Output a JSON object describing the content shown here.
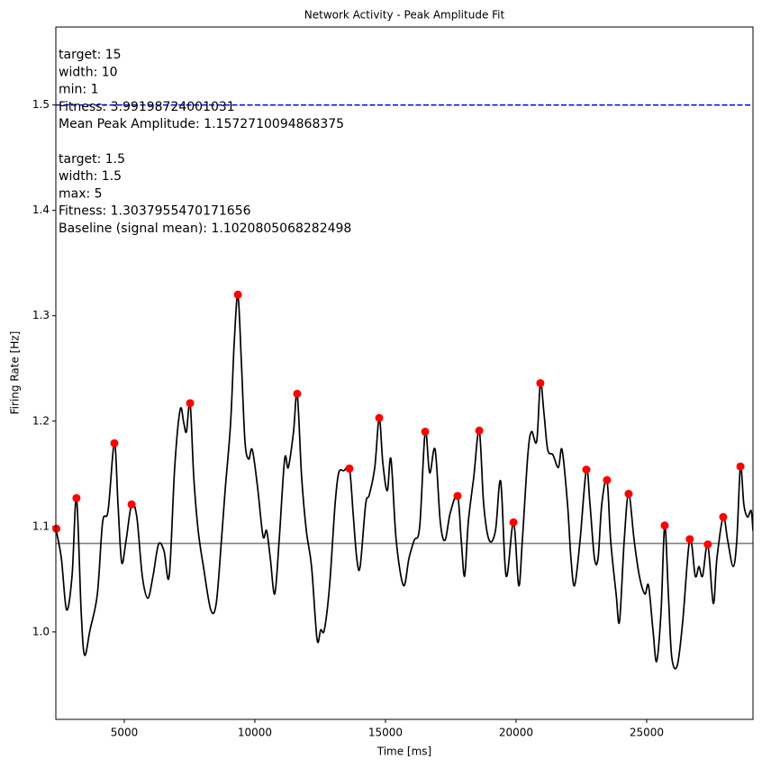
{
  "chart_data": {
    "type": "line",
    "title": "Network Activity - Peak Amplitude Fit",
    "x_label": "Time [ms]",
    "y_label": "Firing Rate [Hz]",
    "xlim": [
      2380,
      29070
    ],
    "ylim": [
      0.917,
      1.574
    ],
    "xticks": [
      5000,
      10000,
      15000,
      20000,
      25000
    ],
    "yticks": [
      {
        "value": 1,
        "label": "1.0"
      },
      1.1,
      1.2,
      1.3,
      1.4,
      1.5
    ],
    "annotations": [
      [
        "target: 15",
        "width: 10",
        "min: 1",
        "Fitness: 3.99198724001031",
        "Mean Peak Amplitude: 1.1572710094868375"
      ],
      [
        "target: 1.5",
        "width: 1.5",
        "max: 5",
        "Fitness: 1.3037955470171656",
        "Baseline (signal mean): 1.1020805068282498"
      ]
    ],
    "hlines": [
      {
        "value": 1.5,
        "color": "#0000ff",
        "style": "dashed"
      },
      {
        "value": 1.084,
        "color": "#808080",
        "style": "solid"
      }
    ],
    "series": [
      {
        "type": "line",
        "color": "#000000",
        "x": [
          2380,
          2590,
          2790,
          3000,
          3170,
          3350,
          3480,
          3690,
          3970,
          4170,
          4380,
          4620,
          4760,
          4900,
          5070,
          5280,
          5480,
          5690,
          5900,
          6100,
          6310,
          6520,
          6720,
          6930,
          7140,
          7280,
          7380,
          7520,
          7660,
          7830,
          8030,
          8310,
          8520,
          8720,
          8860,
          9070,
          9210,
          9350,
          9480,
          9620,
          9760,
          9900,
          10100,
          10310,
          10450,
          10590,
          10760,
          10930,
          11140,
          11280,
          11480,
          11620,
          11790,
          11970,
          12170,
          12380,
          12520,
          12660,
          12860,
          13070,
          13210,
          13410,
          13620,
          13760,
          13900,
          14030,
          14240,
          14380,
          14590,
          14760,
          14900,
          15070,
          15210,
          15410,
          15690,
          15900,
          16100,
          16310,
          16520,
          16690,
          16900,
          17100,
          17280,
          17480,
          17760,
          17900,
          18030,
          18170,
          18380,
          18590,
          18760,
          18970,
          19210,
          19410,
          19620,
          19900,
          20100,
          20240,
          20450,
          20590,
          20790,
          20930,
          21070,
          21210,
          21410,
          21620,
          21760,
          21970,
          22100,
          22240,
          22450,
          22690,
          22830,
          23000,
          23140,
          23280,
          23480,
          23620,
          23830,
          23960,
          24140,
          24310,
          24520,
          24720,
          24930,
          25070,
          25240,
          25380,
          25550,
          25690,
          25830,
          25960,
          26170,
          26380,
          26650,
          26860,
          27000,
          27140,
          27340,
          27550,
          27690,
          27930,
          28100,
          28310,
          28450,
          28590,
          28720,
          28860,
          29000,
          29070
        ],
        "values": [
          1.098,
          1.07,
          1.021,
          1.053,
          1.127,
          1.019,
          0.978,
          1.002,
          1.036,
          1.104,
          1.115,
          1.179,
          1.121,
          1.066,
          1.087,
          1.121,
          1.109,
          1.053,
          1.032,
          1.053,
          1.083,
          1.077,
          1.053,
          1.156,
          1.211,
          1.198,
          1.19,
          1.217,
          1.147,
          1.096,
          1.062,
          1.021,
          1.027,
          1.087,
          1.134,
          1.198,
          1.275,
          1.32,
          1.258,
          1.181,
          1.164,
          1.173,
          1.138,
          1.091,
          1.096,
          1.07,
          1.036,
          1.087,
          1.164,
          1.156,
          1.19,
          1.226,
          1.147,
          1.096,
          1.062,
          0.993,
          1.002,
          1.002,
          1.044,
          1.121,
          1.151,
          1.153,
          1.155,
          1.113,
          1.07,
          1.062,
          1.121,
          1.13,
          1.156,
          1.203,
          1.16,
          1.134,
          1.164,
          1.087,
          1.044,
          1.07,
          1.087,
          1.1,
          1.19,
          1.151,
          1.173,
          1.104,
          1.087,
          1.113,
          1.129,
          1.087,
          1.053,
          1.104,
          1.147,
          1.191,
          1.121,
          1.087,
          1.096,
          1.143,
          1.053,
          1.104,
          1.044,
          1.087,
          1.168,
          1.19,
          1.181,
          1.236,
          1.207,
          1.173,
          1.168,
          1.156,
          1.173,
          1.121,
          1.07,
          1.044,
          1.087,
          1.154,
          1.121,
          1.07,
          1.07,
          1.121,
          1.144,
          1.087,
          1.036,
          1.01,
          1.087,
          1.131,
          1.087,
          1.053,
          1.036,
          1.044,
          1.002,
          0.972,
          1.019,
          1.101,
          1.036,
          0.976,
          0.968,
          1.01,
          1.088,
          1.053,
          1.062,
          1.053,
          1.083,
          1.027,
          1.07,
          1.109,
          1.087,
          1.062,
          1.087,
          1.157,
          1.121,
          1.109,
          1.115,
          1.096
        ]
      },
      {
        "type": "scatter",
        "color": "#ff0000",
        "x": [
          2400,
          3170,
          4620,
          5280,
          7520,
          9350,
          11620,
          13620,
          14760,
          16520,
          17760,
          18590,
          19900,
          20930,
          22690,
          23480,
          24310,
          25690,
          26650,
          27340,
          27930,
          28590
        ],
        "values": [
          1.098,
          1.127,
          1.179,
          1.121,
          1.217,
          1.32,
          1.226,
          1.155,
          1.203,
          1.19,
          1.129,
          1.191,
          1.104,
          1.236,
          1.154,
          1.144,
          1.131,
          1.101,
          1.088,
          1.083,
          1.109,
          1.157
        ]
      }
    ]
  }
}
